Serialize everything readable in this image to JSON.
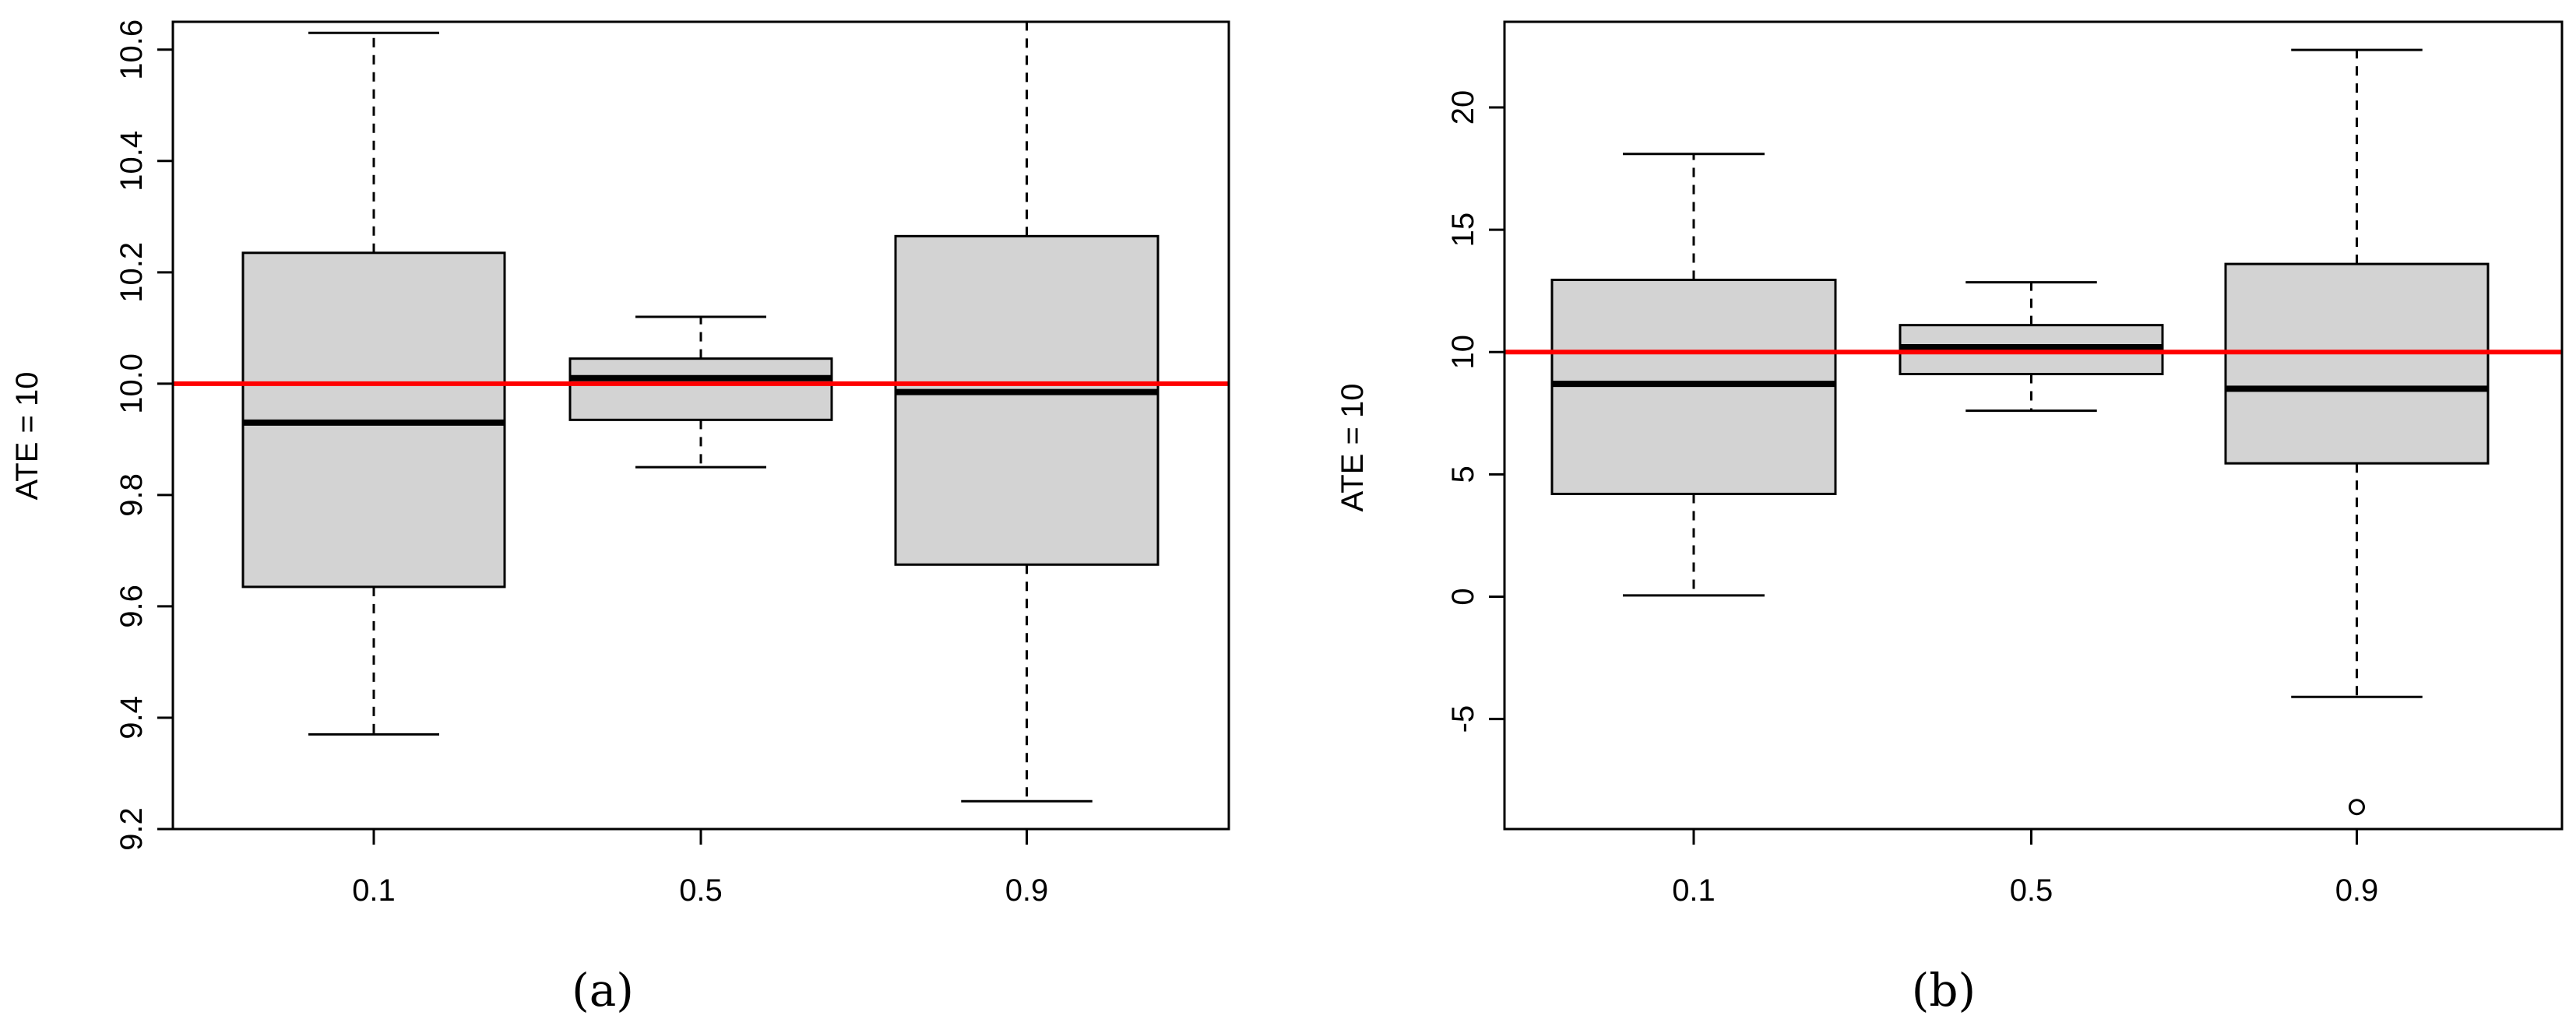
{
  "chart_data": [
    {
      "type": "box",
      "panel_label": "(a)",
      "ylabel": "ATE = 10",
      "xlabel": "",
      "categories": [
        "0.1",
        "0.5",
        "0.9"
      ],
      "ylim": [
        9.2,
        10.65
      ],
      "yticks": [
        9.2,
        9.4,
        9.6,
        9.8,
        10.0,
        10.2,
        10.4,
        10.6
      ],
      "ytick_labels": [
        "9.2",
        "9.4",
        "9.6",
        "9.8",
        "10.0",
        "10.2",
        "10.4",
        "10.6"
      ],
      "boxes": [
        {
          "category": "0.1",
          "whisker_low": 9.37,
          "q1": 9.635,
          "median": 9.93,
          "q3": 10.235,
          "whisker_high": 10.63,
          "outliers": []
        },
        {
          "category": "0.5",
          "whisker_low": 9.85,
          "q1": 9.935,
          "median": 10.01,
          "q3": 10.045,
          "whisker_high": 10.12,
          "outliers": []
        },
        {
          "category": "0.9",
          "whisker_low": 9.25,
          "q1": 9.675,
          "median": 9.985,
          "q3": 10.265,
          "whisker_high": 10.65,
          "outliers": []
        }
      ],
      "reference_line": {
        "y": 10.0,
        "color": "#ff0000"
      },
      "box_fill": "#d3d3d3"
    },
    {
      "type": "box",
      "panel_label": "(b)",
      "ylabel": "ATE = 10",
      "xlabel": "",
      "categories": [
        "0.1",
        "0.5",
        "0.9"
      ],
      "ylim": [
        -9.5,
        23.5
      ],
      "yticks": [
        -5,
        0,
        5,
        10,
        15,
        20
      ],
      "ytick_labels": [
        "-5",
        "0",
        "5",
        "10",
        "15",
        "20"
      ],
      "boxes": [
        {
          "category": "0.1",
          "whisker_low": 0.05,
          "q1": 4.2,
          "median": 8.7,
          "q3": 12.95,
          "whisker_high": 18.1,
          "outliers": []
        },
        {
          "category": "0.5",
          "whisker_low": 7.6,
          "q1": 9.1,
          "median": 10.2,
          "q3": 11.1,
          "whisker_high": 12.85,
          "outliers": []
        },
        {
          "category": "0.9",
          "whisker_low": -4.1,
          "q1": 5.45,
          "median": 8.5,
          "q3": 13.6,
          "whisker_high": 22.35,
          "outliers": [
            -8.6
          ]
        }
      ],
      "reference_line": {
        "y": 10.0,
        "color": "#ff0000"
      },
      "box_fill": "#d3d3d3"
    }
  ]
}
